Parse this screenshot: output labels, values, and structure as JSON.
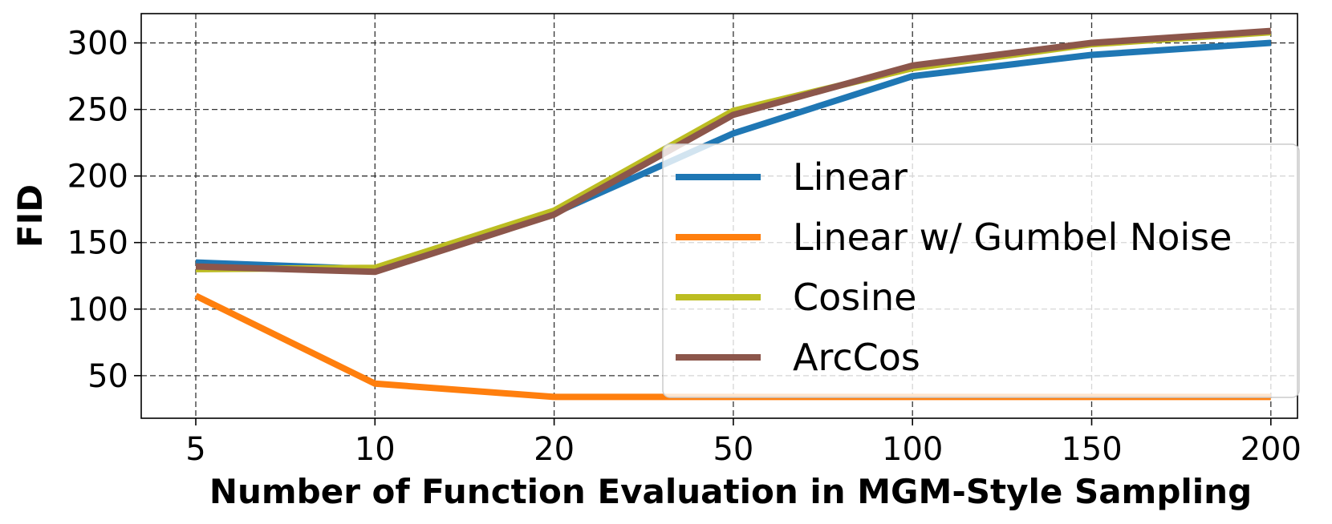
{
  "chart_data": {
    "type": "line",
    "title": "",
    "xlabel": "Number of Function Evaluation in MGM-Style Sampling",
    "ylabel": "FID",
    "categories": [
      "5",
      "10",
      "20",
      "50",
      "100",
      "150",
      "200"
    ],
    "yticks": [
      50,
      100,
      150,
      200,
      250,
      300
    ],
    "ylim": [
      18,
      322
    ],
    "grid": true,
    "legend_position": "center-right",
    "series": [
      {
        "name": "Linear",
        "color": "#1f77b4",
        "values": [
          135,
          130,
          172,
          232,
          275,
          291,
          300
        ]
      },
      {
        "name": "Linear w/ Gumbel Noise",
        "color": "#ff7f0e",
        "values": [
          110,
          44,
          34,
          34,
          34,
          34,
          34
        ]
      },
      {
        "name": "Cosine",
        "color": "#bcbd22",
        "values": [
          130,
          131,
          174,
          249,
          281,
          299,
          308
        ]
      },
      {
        "name": "ArcCos",
        "color": "#8c564b",
        "values": [
          132,
          128,
          171,
          246,
          283,
          300,
          309
        ]
      }
    ]
  }
}
